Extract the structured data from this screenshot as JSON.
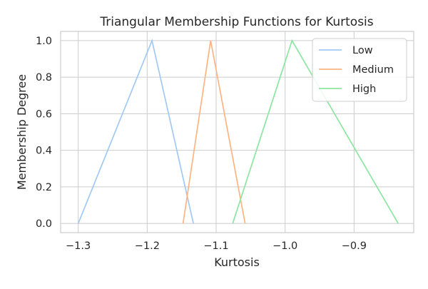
{
  "chart_data": {
    "type": "line",
    "title": "Triangular Membership Functions for Kurtosis",
    "xlabel": "Kurtosis",
    "ylabel": "Membership Degree",
    "xlim": [
      -1.3255,
      -0.8135
    ],
    "ylim": [
      -0.05,
      1.05
    ],
    "x_ticks": [
      -1.3,
      -1.2,
      -1.1,
      -1.0,
      -0.9
    ],
    "x_tick_labels": [
      "−1.3",
      "−1.2",
      "−1.1",
      "−1.0",
      "−0.9"
    ],
    "y_ticks": [
      0.0,
      0.2,
      0.4,
      0.6,
      0.8,
      1.0
    ],
    "y_tick_labels": [
      "0.0",
      "0.2",
      "0.4",
      "0.6",
      "0.8",
      "1.0"
    ],
    "grid": true,
    "legend_position": "top-right",
    "series": [
      {
        "name": "Low",
        "color": "#a1c9f4",
        "x": [
          -1.3,
          -1.193,
          -1.133
        ],
        "y": [
          0,
          1,
          0
        ]
      },
      {
        "name": "Medium",
        "color": "#ffb482",
        "x": [
          -1.148,
          -1.108,
          -1.058
        ],
        "y": [
          0,
          1,
          0
        ]
      },
      {
        "name": "High",
        "color": "#8de5a1",
        "x": [
          -1.076,
          -0.99,
          -0.836
        ],
        "y": [
          0,
          1,
          0
        ]
      }
    ]
  }
}
